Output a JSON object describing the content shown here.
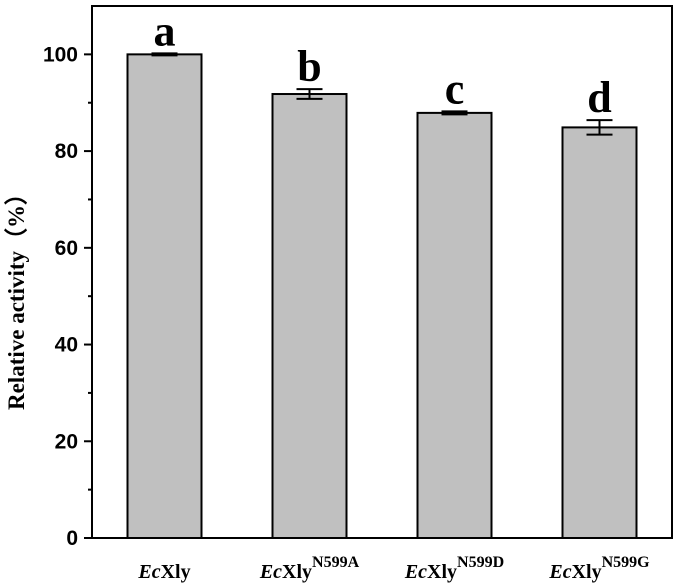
{
  "chart_data": {
    "type": "bar",
    "categories": [
      {
        "italic": "Ec",
        "base": "Xly",
        "sup": ""
      },
      {
        "italic": "Ec",
        "base": "Xly",
        "sup": "N599A"
      },
      {
        "italic": "Ec",
        "base": "Xly",
        "sup": "N599D"
      },
      {
        "italic": "Ec",
        "base": "Xly",
        "sup": "N599G"
      }
    ],
    "values": [
      100,
      91.8,
      87.9,
      84.9
    ],
    "errors": [
      0.2,
      1.0,
      0.3,
      1.5
    ],
    "significance": [
      "a",
      "b",
      "c",
      "d"
    ],
    "ylabel": "Relative activity（%）",
    "xlabel": "",
    "ylim": [
      0,
      110
    ],
    "yticks": [
      0,
      20,
      40,
      60,
      80,
      100
    ],
    "bar_color": "#c0c0c0",
    "grid": false
  }
}
